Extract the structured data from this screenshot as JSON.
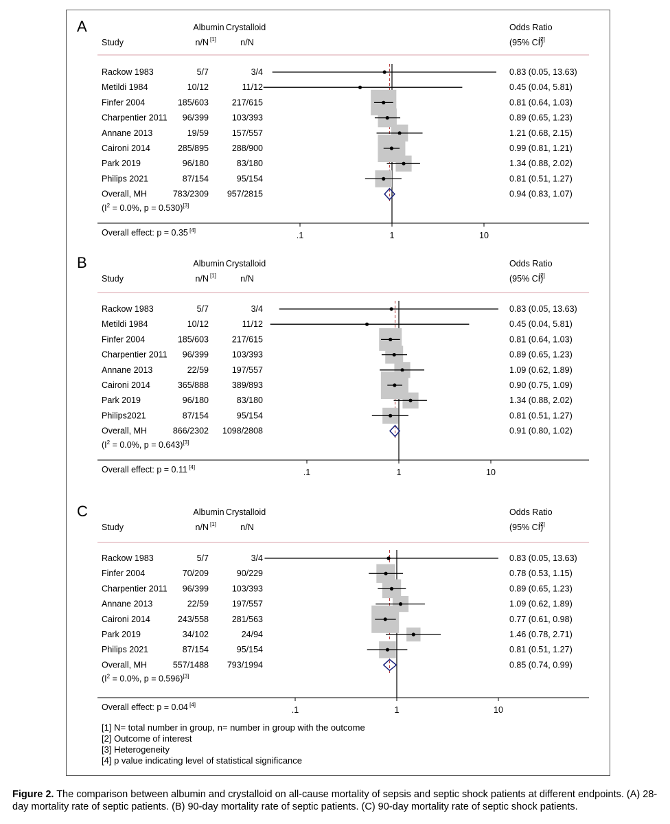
{
  "chart_data": [
    {
      "type": "forest",
      "panel_label": "A",
      "header": {
        "study": "Study",
        "albumin": "Albumin",
        "crystalloid": "Crystalloid",
        "nn": "n/N",
        "fn1": "[1]",
        "or_title": "Odds Ratio",
        "ci_title": "(95% CI)",
        "fn2": "[2]"
      },
      "studies": [
        {
          "name": "Rackow 1983",
          "albumin": "5/7",
          "crystalloid": "3/4",
          "or": 0.83,
          "ci_low": 0.05,
          "ci_high": 13.63,
          "label": "0.83 (0.05, 13.63)"
        },
        {
          "name": "Metildi 1984",
          "albumin": "10/12",
          "crystalloid": "11/12",
          "or": 0.45,
          "ci_low": 0.04,
          "ci_high": 5.81,
          "label": "0.45 (0.04, 5.81)"
        },
        {
          "name": "Finfer 2004",
          "albumin": "185/603",
          "crystalloid": "217/615",
          "or": 0.81,
          "ci_low": 0.64,
          "ci_high": 1.03,
          "label": "0.81 (0.64, 1.03)",
          "weight": 0.9
        },
        {
          "name": "Charpentier 2011",
          "albumin": "96/399",
          "crystalloid": "103/393",
          "or": 0.89,
          "ci_low": 0.65,
          "ci_high": 1.23,
          "label": "0.89 (0.65, 1.23)",
          "weight": 0.55
        },
        {
          "name": "Annane 2013",
          "albumin": "19/59",
          "crystalloid": "157/557",
          "or": 1.21,
          "ci_low": 0.68,
          "ci_high": 2.15,
          "label": "1.21 (0.68, 2.15)",
          "weight": 0.45
        },
        {
          "name": "Caironi 2014",
          "albumin": "285/895",
          "crystalloid": "288/900",
          "or": 0.99,
          "ci_low": 0.81,
          "ci_high": 1.21,
          "label": "0.99 (0.81, 1.21)",
          "weight": 1.0
        },
        {
          "name": "Park 2019",
          "albumin": "96/180",
          "crystalloid": "83/180",
          "or": 1.34,
          "ci_low": 0.88,
          "ci_high": 2.02,
          "label": "1.34 (0.88, 2.02)",
          "weight": 0.4
        },
        {
          "name": "Philips 2021",
          "albumin": "87/154",
          "crystalloid": "95/154",
          "or": 0.81,
          "ci_low": 0.51,
          "ci_high": 1.27,
          "label": "0.81 (0.51, 1.27)",
          "weight": 0.45
        }
      ],
      "overall": {
        "name": "Overall, MH",
        "albumin": "783/2309",
        "crystalloid": "957/2815",
        "or": 0.94,
        "ci_low": 0.83,
        "ci_high": 1.07,
        "label": "0.94 (0.83, 1.07)"
      },
      "heterogeneity": "(I",
      "heterogeneity_sup": "2",
      "heterogeneity_rest": " = 0.0%, p = 0.530)",
      "heterogeneity_fn": "[3]",
      "overall_effect": "Overall effect: p = 0.35",
      "overall_effect_fn": "[4]",
      "x_ticks": [
        {
          "value": 0.1,
          "label": ".1"
        },
        {
          "value": 1,
          "label": "1"
        },
        {
          "value": 10,
          "label": "10"
        }
      ],
      "x_scale": "log",
      "x_range": [
        0.03,
        20
      ]
    },
    {
      "type": "forest",
      "panel_label": "B",
      "header": {
        "study": "Study",
        "albumin": "Albumin",
        "crystalloid": "Crystalloid",
        "nn": "n/N",
        "fn1": "[1]",
        "or_title": "Odds Ratio",
        "ci_title": "(95% CI)",
        "fn2": "[2]"
      },
      "studies": [
        {
          "name": "Rackow 1983",
          "albumin": "5/7",
          "crystalloid": "3/4",
          "or": 0.83,
          "ci_low": 0.05,
          "ci_high": 13.63,
          "label": "0.83 (0.05, 13.63)"
        },
        {
          "name": "Metildi 1984",
          "albumin": "10/12",
          "crystalloid": "11/12",
          "or": 0.45,
          "ci_low": 0.04,
          "ci_high": 5.81,
          "label": "0.45 (0.04, 5.81)"
        },
        {
          "name": "Finfer 2004",
          "albumin": "185/603",
          "crystalloid": "217/615",
          "or": 0.81,
          "ci_low": 0.64,
          "ci_high": 1.03,
          "label": "0.81 (0.64, 1.03)",
          "weight": 0.75
        },
        {
          "name": "Charpentier 2011",
          "albumin": "96/399",
          "crystalloid": "103/393",
          "or": 0.89,
          "ci_low": 0.65,
          "ci_high": 1.23,
          "label": "0.89 (0.65, 1.23)",
          "weight": 0.5
        },
        {
          "name": "Annane 2013",
          "albumin": "22/59",
          "crystalloid": "197/557",
          "or": 1.09,
          "ci_low": 0.62,
          "ci_high": 1.89,
          "label": "1.09 (0.62, 1.89)",
          "weight": 0.4
        },
        {
          "name": "Caironi 2014",
          "albumin": "365/888",
          "crystalloid": "389/893",
          "or": 0.9,
          "ci_low": 0.75,
          "ci_high": 1.09,
          "label": "0.90 (0.75, 1.09)",
          "weight": 1.0
        },
        {
          "name": "Park 2019",
          "albumin": "96/180",
          "crystalloid": "83/180",
          "or": 1.34,
          "ci_low": 0.88,
          "ci_high": 2.02,
          "label": "1.34 (0.88, 2.02)",
          "weight": 0.4
        },
        {
          "name": "Philips2021",
          "albumin": "87/154",
          "crystalloid": "95/154",
          "or": 0.81,
          "ci_low": 0.51,
          "ci_high": 1.27,
          "label": "0.81 (0.51, 1.27)",
          "weight": 0.4
        }
      ],
      "overall": {
        "name": "Overall, MH",
        "albumin": "866/2302",
        "crystalloid": "1098/2808",
        "or": 0.91,
        "ci_low": 0.8,
        "ci_high": 1.02,
        "label": "0.91 (0.80, 1.02)"
      },
      "heterogeneity": "(I",
      "heterogeneity_sup": "2",
      "heterogeneity_rest": " = 0.0%, p = 0.643)",
      "heterogeneity_fn": "[3]",
      "overall_effect": "Overall effect: p = 0.11",
      "overall_effect_fn": "[4]",
      "x_ticks": [
        {
          "value": 0.1,
          "label": ".1"
        },
        {
          "value": 1,
          "label": "1"
        },
        {
          "value": 10,
          "label": "10"
        }
      ],
      "x_scale": "log",
      "x_range": [
        0.03,
        20
      ]
    },
    {
      "type": "forest",
      "panel_label": "C",
      "header": {
        "study": "Study",
        "albumin": "Albumin",
        "crystalloid": "Crystalloid",
        "nn": "n/N",
        "fn1": "[1]",
        "or_title": "Odds Ratio",
        "ci_title": "(95% CI)",
        "fn2": "[2]"
      },
      "studies": [
        {
          "name": "Rackow 1983",
          "albumin": "5/7",
          "crystalloid": "3/4",
          "or": 0.83,
          "ci_low": 0.05,
          "ci_high": 13.63,
          "label": "0.83 (0.05, 13.63)"
        },
        {
          "name": "Finfer 2004",
          "albumin": "70/209",
          "crystalloid": "90/229",
          "or": 0.78,
          "ci_low": 0.53,
          "ci_high": 1.15,
          "label": "0.78 (0.53, 1.15)",
          "weight": 0.55
        },
        {
          "name": "Charpentier 2011",
          "albumin": "96/399",
          "crystalloid": "103/393",
          "or": 0.89,
          "ci_low": 0.65,
          "ci_high": 1.23,
          "label": "0.89 (0.65, 1.23)",
          "weight": 0.55
        },
        {
          "name": "Annane 2013",
          "albumin": "22/59",
          "crystalloid": "197/557",
          "or": 1.09,
          "ci_low": 0.62,
          "ci_high": 1.89,
          "label": "1.09 (0.62, 1.89)",
          "weight": 0.4
        },
        {
          "name": "Caironi 2014",
          "albumin": "243/558",
          "crystalloid": "281/563",
          "or": 0.77,
          "ci_low": 0.61,
          "ci_high": 0.98,
          "label": "0.77 (0.61, 0.98)",
          "weight": 1.0
        },
        {
          "name": "Park 2019",
          "albumin": "34/102",
          "crystalloid": "24/94",
          "or": 1.46,
          "ci_low": 0.78,
          "ci_high": 2.71,
          "label": "1.46 (0.78, 2.71)",
          "weight": 0.3
        },
        {
          "name": "Philips 2021",
          "albumin": "87/154",
          "crystalloid": "95/154",
          "or": 0.81,
          "ci_low": 0.51,
          "ci_high": 1.27,
          "label": "0.81 (0.51, 1.27)",
          "weight": 0.45
        }
      ],
      "overall": {
        "name": "Overall, MH",
        "albumin": "557/1488",
        "crystalloid": "793/1994",
        "or": 0.85,
        "ci_low": 0.74,
        "ci_high": 0.99,
        "label": "0.85 (0.74, 0.99)"
      },
      "heterogeneity": "(I",
      "heterogeneity_sup": "2",
      "heterogeneity_rest": " = 0.0%, p = 0.596)",
      "heterogeneity_fn": "[3]",
      "overall_effect": "Overall effect: p = 0.04",
      "overall_effect_fn": "[4]",
      "x_ticks": [
        {
          "value": 0.1,
          "label": ".1"
        },
        {
          "value": 1,
          "label": "1"
        },
        {
          "value": 10,
          "label": "10"
        }
      ],
      "x_scale": "log",
      "x_range": [
        0.03,
        20
      ]
    }
  ],
  "colors": {
    "weight_box": "#c8c8c8",
    "diamond": "#1a237e",
    "overall_dashed_line": "#b03030",
    "header_rule": "#d8a0a8"
  },
  "footnotes": [
    "[1] N= total number in group, n= number in group with the outcome",
    "[2] Outcome of interest",
    "[3] Heterogeneity",
    "[4] p value indicating level of statistical significance"
  ],
  "caption": {
    "label": "Figure 2.",
    "text": " The comparison between albumin and crystalloid on all-cause mortality of sepsis and septic shock patients at different endpoints. (A) 28-day mortality rate of septic patients. (B) 90-day mortality rate of septic patients. (C) 90-day mortality rate of septic shock patients."
  }
}
